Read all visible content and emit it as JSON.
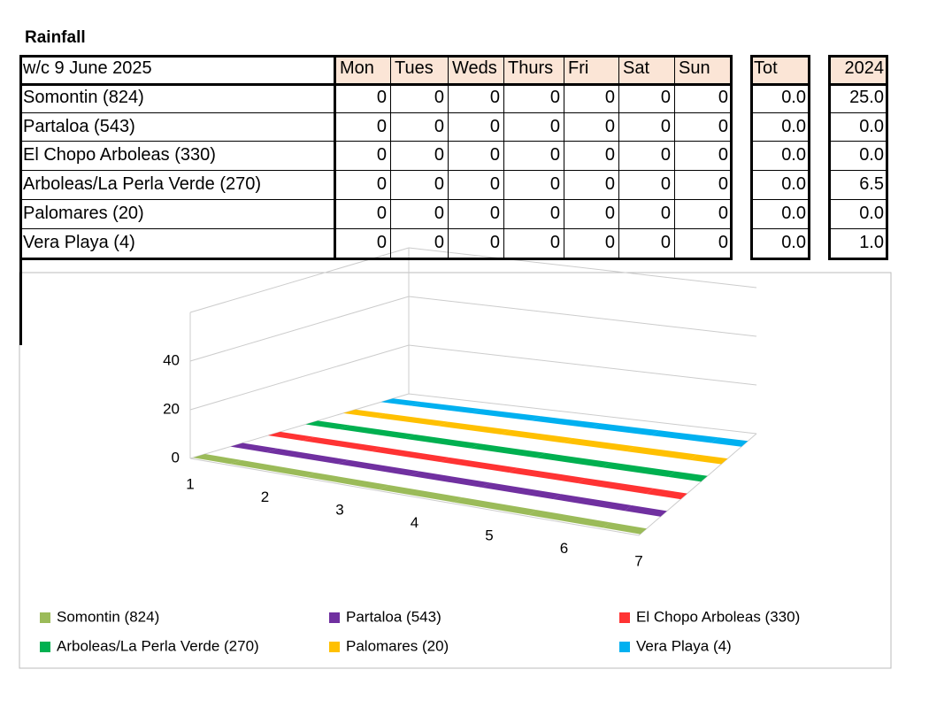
{
  "title": "Rainfall",
  "table": {
    "header": [
      "w/c 9 June  2025",
      "Mon",
      "Tues",
      "Weds",
      "Thurs",
      "Fri",
      "Sat",
      "Sun",
      "Tot",
      "2024"
    ],
    "rows": [
      [
        "Somontin (824)",
        "0",
        "0",
        "0",
        "0",
        "0",
        "0",
        "0",
        "0.0",
        "25.0"
      ],
      [
        "Partaloa (543)",
        "0",
        "0",
        "0",
        "0",
        "0",
        "0",
        "0",
        "0.0",
        "0.0"
      ],
      [
        "El Chopo Arboleas (330)",
        "0",
        "0",
        "0",
        "0",
        "0",
        "0",
        "0",
        "0.0",
        "0.0"
      ],
      [
        "Arboleas/La Perla Verde (270)",
        "0",
        "0",
        "0",
        "0",
        "0",
        "0",
        "0",
        "0.0",
        "6.5"
      ],
      [
        "Palomares (20)",
        "0",
        "0",
        "0",
        "0",
        "0",
        "0",
        "0",
        "0.0",
        "0.0"
      ],
      [
        "Vera Playa (4)",
        "0",
        "0",
        "0",
        "0",
        "0",
        "0",
        "0",
        "0.0",
        "1.0"
      ]
    ]
  },
  "chart_data": {
    "type": "line3d",
    "categories": [
      "1",
      "2",
      "3",
      "4",
      "5",
      "6",
      "7"
    ],
    "series": [
      {
        "name": "Somontin (824)",
        "color": "#9bbb59",
        "values": [
          0,
          0,
          0,
          0,
          0,
          0,
          0
        ]
      },
      {
        "name": "Partaloa (543)",
        "color": "#7030a0",
        "values": [
          0,
          0,
          0,
          0,
          0,
          0,
          0
        ]
      },
      {
        "name": "El Chopo Arboleas (330)",
        "color": "#ff3333",
        "values": [
          0,
          0,
          0,
          0,
          0,
          0,
          0
        ]
      },
      {
        "name": "Arboleas/La Perla Verde (270)",
        "color": "#00b050",
        "values": [
          0,
          0,
          0,
          0,
          0,
          0,
          0
        ]
      },
      {
        "name": "Palomares (20)",
        "color": "#ffc000",
        "values": [
          0,
          0,
          0,
          0,
          0,
          0,
          0
        ]
      },
      {
        "name": "Vera Playa (4)",
        "color": "#00b0f0",
        "values": [
          0,
          0,
          0,
          0,
          0,
          0,
          0
        ]
      }
    ],
    "ylim": [
      0,
      60
    ],
    "yticks": [
      0,
      20,
      40
    ],
    "grid": true
  }
}
